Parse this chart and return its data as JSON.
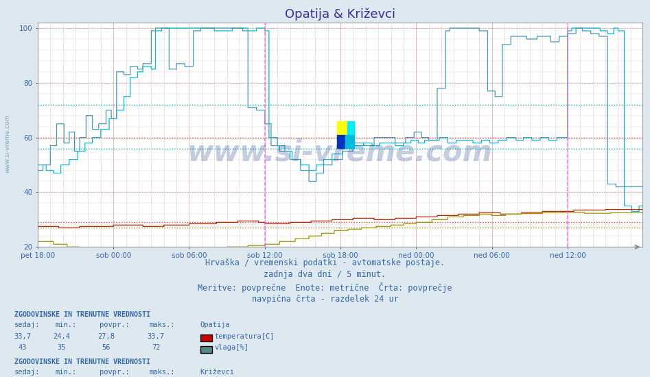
{
  "title": "Opatija & Križevci",
  "bg_color": "#dde8f0",
  "plot_bg_color": "#ffffff",
  "outer_bg": "#dde8f0",
  "ylim": [
    20,
    102
  ],
  "xlim": [
    0,
    575
  ],
  "xtick_labels": [
    "pet 18:00",
    "sob 00:00",
    "sob 06:00",
    "sob 12:00",
    "sob 18:00",
    "ned 00:00",
    "ned 06:00",
    "ned 12:00"
  ],
  "xtick_positions": [
    0,
    72,
    144,
    216,
    288,
    360,
    432,
    504
  ],
  "ytick_positions": [
    20,
    40,
    60,
    80,
    100
  ],
  "ytick_labels": [
    "20",
    "40",
    "60",
    "80",
    "100"
  ],
  "vline_positions": [
    216,
    504
  ],
  "vline_color": "#ff66ff",
  "hlines_cyan": [
    72,
    56
  ],
  "hlines_red": [
    60,
    29
  ],
  "hline_olive": 27,
  "watermark": "www.si-vreme.com",
  "watermark_color": "#1a3a8a",
  "watermark_alpha": 0.25,
  "subtitle_lines": [
    "Hrvaška / vremenski podatki - avtomatske postaje.",
    "zadnja dva dni / 5 minut.",
    "Meritve: povprečne  Enote: metrične  Črta: povprečje",
    "navpična črta - razdelek 24 ur"
  ],
  "legend_text_opatija": "Opatija",
  "legend_text_krizevci": "Križevci",
  "legend_temp_opatija_color": "#cc0000",
  "legend_hum_opatija_color": "#558888",
  "legend_temp_krizevci_color": "#888800",
  "legend_hum_krizevci_color": "#00aacc",
  "color_opatija_hum": "#4499bb",
  "color_krizevci_hum": "#00bbdd",
  "color_opatija_temp": "#cc2200",
  "color_krizevci_temp": "#999900",
  "footer_color": "#3366aa",
  "title_color": "#333399",
  "grid_major_color": "#ddbbbb",
  "grid_minor_color": "#eedddd"
}
